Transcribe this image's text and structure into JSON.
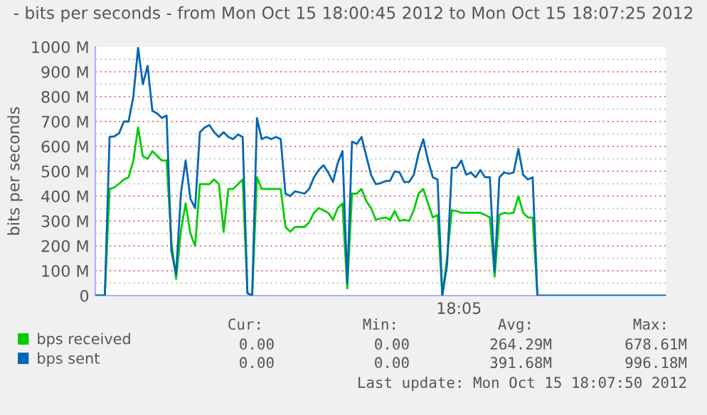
{
  "chart_data": {
    "type": "line",
    "title": "- bits per seconds - from Mon Oct 15 18:00:45 2012 to Mon Oct 15 18:07:25 2012",
    "ylabel": "bits per seconds",
    "categories": [
      null,
      null,
      null,
      null,
      null,
      null,
      null,
      null,
      null,
      null,
      null,
      null,
      null,
      null,
      null,
      null,
      null,
      null,
      null,
      null,
      null,
      null,
      null,
      null,
      null,
      null,
      null,
      null,
      null,
      null,
      null,
      null,
      null,
      null,
      null,
      null,
      null,
      null,
      null,
      null,
      null,
      null,
      null,
      null,
      null,
      null,
      null,
      null,
      null,
      null,
      null,
      null,
      null,
      null,
      null,
      null,
      null,
      null,
      null,
      null,
      null,
      null,
      null,
      null,
      null,
      null,
      null,
      null,
      null,
      null,
      null,
      null,
      null,
      null,
      null,
      null,
      null,
      null,
      null,
      null,
      null,
      null,
      null,
      null,
      null,
      null,
      null,
      null,
      null,
      null,
      null,
      null,
      null,
      null,
      null,
      null,
      null,
      null,
      null,
      null,
      null,
      null,
      null,
      null,
      null,
      null,
      null,
      null,
      null,
      null,
      null,
      null,
      null,
      null,
      null,
      null,
      null,
      null,
      null,
      null,
      null
    ],
    "series": [
      {
        "name": "bps received",
        "color": "#00cc00",
        "values": [
          0,
          0,
          0,
          429,
          435,
          450,
          467,
          476,
          543,
          676,
          560,
          550,
          581,
          562,
          543,
          543,
          219,
          67,
          260,
          371,
          250,
          200,
          448,
          448,
          448,
          467,
          448,
          257,
          429,
          429,
          448,
          467,
          10,
          0,
          476,
          429,
          429,
          429,
          429,
          429,
          276,
          257,
          276,
          276,
          276,
          295,
          333,
          352,
          343,
          333,
          305,
          352,
          371,
          29,
          410,
          410,
          429,
          381,
          352,
          305,
          310,
          314,
          305,
          340,
          300,
          305,
          300,
          343,
          410,
          429,
          371,
          314,
          324,
          0,
          152,
          343,
          340,
          333,
          333,
          333,
          333,
          333,
          324,
          314,
          76,
          324,
          333,
          330,
          333,
          400,
          333,
          314,
          314,
          0,
          null,
          null,
          null,
          null,
          null,
          null,
          null,
          null,
          null,
          null,
          null,
          null,
          null,
          null,
          null,
          null,
          null,
          null,
          null,
          null,
          null,
          null,
          null,
          null,
          null,
          null,
          null
        ]
      },
      {
        "name": "bps sent",
        "color": "#0066b3",
        "values": [
          0,
          0,
          0,
          638,
          640,
          653,
          700,
          700,
          800,
          996,
          850,
          924,
          743,
          733,
          714,
          724,
          181,
          86,
          410,
          543,
          390,
          352,
          657,
          676,
          686,
          657,
          638,
          657,
          638,
          629,
          648,
          638,
          10,
          0,
          714,
          629,
          638,
          629,
          638,
          629,
          410,
          400,
          419,
          415,
          410,
          429,
          476,
          505,
          524,
          495,
          457,
          533,
          581,
          48,
          619,
          610,
          638,
          562,
          486,
          448,
          452,
          460,
          462,
          500,
          495,
          457,
          457,
          486,
          571,
          629,
          543,
          476,
          467,
          0,
          124,
          514,
          514,
          543,
          486,
          495,
          476,
          505,
          476,
          476,
          95,
          476,
          495,
          490,
          495,
          590,
          486,
          467,
          476,
          0,
          0,
          0,
          0,
          0,
          0,
          0,
          0,
          0,
          0,
          0,
          0,
          0,
          0,
          0,
          0,
          0,
          0,
          0,
          0,
          0,
          0,
          0,
          0,
          0,
          0,
          0,
          0
        ]
      }
    ],
    "ylim": [
      0,
      1000
    ],
    "yticks": [
      {
        "value": 0,
        "label": "0"
      },
      {
        "value": 50,
        "label": null
      },
      {
        "value": 100,
        "label": "100 M"
      },
      {
        "value": 150,
        "label": null
      },
      {
        "value": 200,
        "label": "200 M"
      },
      {
        "value": 250,
        "label": null
      },
      {
        "value": 300,
        "label": "300 M"
      },
      {
        "value": 350,
        "label": null
      },
      {
        "value": 400,
        "label": "400 M"
      },
      {
        "value": 450,
        "label": null
      },
      {
        "value": 500,
        "label": "500 M"
      },
      {
        "value": 550,
        "label": null
      },
      {
        "value": 600,
        "label": "600 M"
      },
      {
        "value": 650,
        "label": null
      },
      {
        "value": 700,
        "label": "700 M"
      },
      {
        "value": 750,
        "label": null
      },
      {
        "value": 800,
        "label": "800 M"
      },
      {
        "value": 850,
        "label": null
      },
      {
        "value": 900,
        "label": "900 M"
      },
      {
        "value": 950,
        "label": null
      },
      {
        "value": 1000,
        "label": "1000 M"
      }
    ],
    "grid": "y",
    "legend": "bottom",
    "marker": "none",
    "line_style": "solid",
    "annotations": [
      "Cur:",
      "Min:",
      "Avg:",
      "Max:",
      "0.00",
      "0.00",
      "264.29M",
      "678.61M",
      "0.00",
      "0.00",
      "391.68M",
      "996.18M",
      "Last update: Mon Oct 15 18:07:50 2012",
      "18:05"
    ]
  }
}
